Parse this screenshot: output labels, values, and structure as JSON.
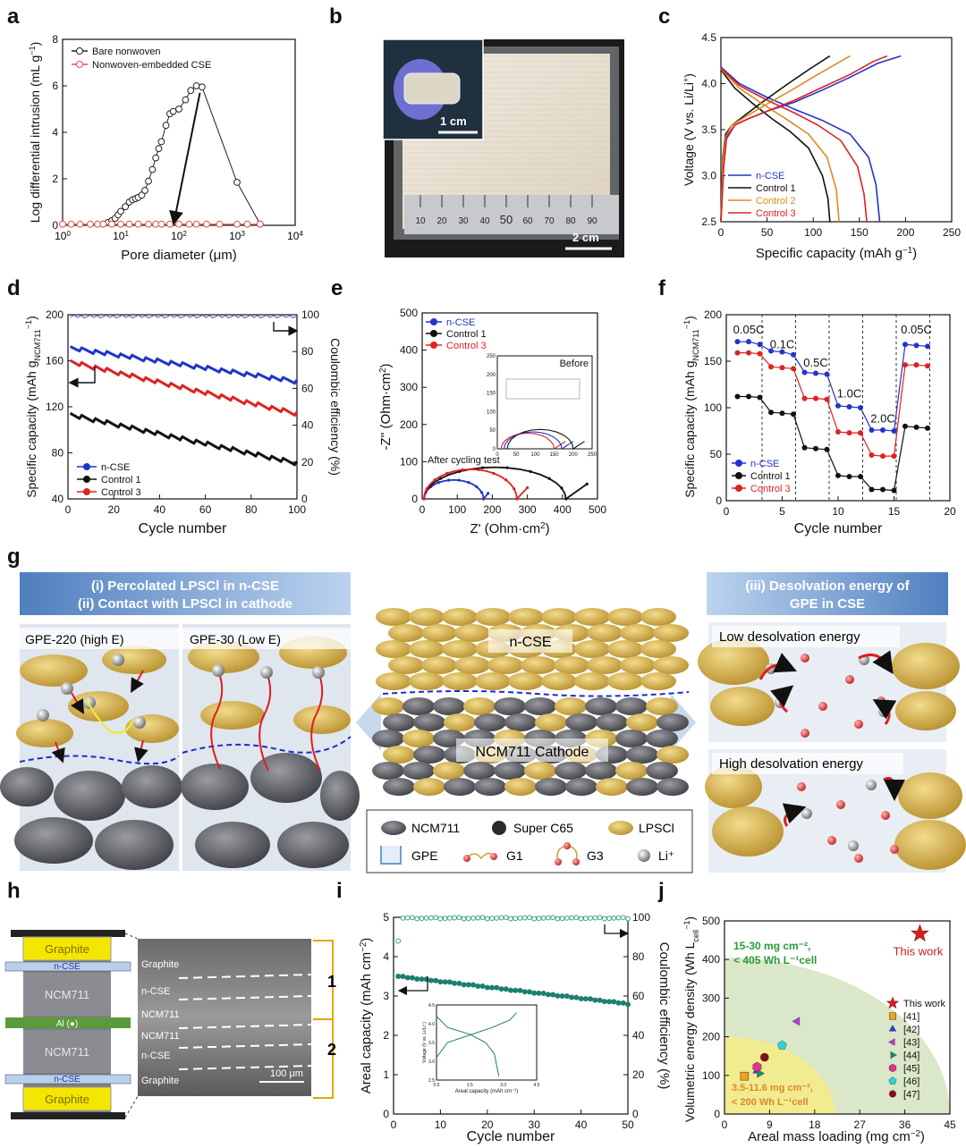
{
  "chart_data": [
    {
      "panel": "a",
      "type": "line",
      "xscale": "log",
      "xlabel": "Pore diameter (μm)",
      "ylabel": "Log differential intrusion (mL g",
      "ylabel_sup": "−1",
      "ylabel_end": ")",
      "xlim": [
        1,
        10000
      ],
      "ylim": [
        0,
        8
      ],
      "xticks": [
        1,
        10,
        100,
        1000,
        10000
      ],
      "xtick_labels": [
        "10",
        "10",
        "10",
        "10",
        "10"
      ],
      "xtick_sups": [
        "0",
        "1",
        "2",
        "3",
        "4"
      ],
      "yticks": [
        0,
        2,
        4,
        6,
        8
      ],
      "series": [
        {
          "name": "Bare nonwoven",
          "color": "#222222",
          "x": [
            5,
            6,
            7,
            8,
            9,
            10,
            12,
            14,
            16,
            18,
            20,
            23,
            26,
            30,
            35,
            40,
            45,
            50,
            60,
            70,
            80,
            100,
            130,
            160,
            200,
            250,
            1000,
            2500
          ],
          "y": [
            0.05,
            0.12,
            0.2,
            0.3,
            0.45,
            0.6,
            0.8,
            1.0,
            1.1,
            1.15,
            1.2,
            1.3,
            1.5,
            1.9,
            2.4,
            2.9,
            3.3,
            3.6,
            4.3,
            4.8,
            4.9,
            5.0,
            5.4,
            5.8,
            6.0,
            5.95,
            1.85,
            0.05
          ]
        },
        {
          "name": "Nonwoven-embedded CSE",
          "color": "#d9534f",
          "x": [
            1,
            1.4,
            2,
            3,
            4,
            5,
            7,
            10,
            14,
            20,
            30,
            40,
            50,
            70,
            100,
            150,
            200,
            300,
            500,
            1000,
            1500,
            2500
          ],
          "y": [
            0.05,
            0.05,
            0.05,
            0.05,
            0.05,
            0.05,
            0.05,
            0.05,
            0.05,
            0.05,
            0.05,
            0.05,
            0.05,
            0.05,
            0.05,
            0.05,
            0.05,
            0.05,
            0.05,
            0.05,
            0.05,
            0.05
          ]
        }
      ]
    },
    {
      "panel": "c",
      "type": "line",
      "xlabel": "Specific capacity (mAh g",
      "xlabel_sup": "−1",
      "xlabel_end": ")",
      "ylabel": "Voltage (V vs. Li/Li",
      "ylabel_sup": "+",
      "ylabel_end": ")",
      "xlim": [
        0,
        250
      ],
      "ylim": [
        2.5,
        4.5
      ],
      "xticks": [
        0,
        50,
        100,
        150,
        200,
        250
      ],
      "yticks": [
        2.5,
        3.0,
        3.5,
        4.0,
        4.5
      ],
      "series": [
        {
          "name": "n-CSE",
          "color": "#2233cc",
          "charge_x": [
            0,
            3,
            6,
            15,
            30,
            50,
            80,
            110,
            140,
            170,
            195
          ],
          "charge_y": [
            2.5,
            3.1,
            3.4,
            3.55,
            3.62,
            3.7,
            3.8,
            3.93,
            4.07,
            4.22,
            4.3
          ],
          "discharge_x": [
            0,
            20,
            50,
            80,
            110,
            140,
            160,
            168,
            172
          ],
          "discharge_y": [
            4.18,
            4.0,
            3.85,
            3.72,
            3.6,
            3.45,
            3.2,
            2.9,
            2.5
          ]
        },
        {
          "name": "Control 1",
          "color": "#111111",
          "charge_x": [
            0,
            2,
            5,
            12,
            25,
            45,
            70,
            95,
            118
          ],
          "charge_y": [
            2.5,
            3.2,
            3.45,
            3.55,
            3.65,
            3.8,
            3.98,
            4.15,
            4.3
          ],
          "discharge_x": [
            0,
            15,
            35,
            55,
            75,
            95,
            110,
            116,
            118
          ],
          "discharge_y": [
            4.15,
            3.95,
            3.78,
            3.62,
            3.48,
            3.3,
            3.0,
            2.75,
            2.5
          ]
        },
        {
          "name": "Control 2",
          "color": "#e08a1e",
          "charge_x": [
            0,
            2,
            5,
            12,
            25,
            45,
            75,
            105,
            140
          ],
          "charge_y": [
            2.5,
            3.15,
            3.42,
            3.55,
            3.63,
            3.75,
            3.92,
            4.1,
            4.3
          ],
          "discharge_x": [
            0,
            20,
            45,
            70,
            95,
            115,
            125,
            128
          ],
          "discharge_y": [
            4.16,
            3.95,
            3.78,
            3.62,
            3.45,
            3.2,
            2.85,
            2.5
          ]
        },
        {
          "name": "Control 3",
          "color": "#dd2222",
          "charge_x": [
            0,
            3,
            6,
            15,
            30,
            50,
            80,
            110,
            140,
            165,
            180
          ],
          "charge_y": [
            2.5,
            3.1,
            3.42,
            3.55,
            3.62,
            3.7,
            3.82,
            3.96,
            4.1,
            4.24,
            4.3
          ],
          "discharge_x": [
            0,
            20,
            50,
            80,
            105,
            130,
            148,
            155,
            158
          ],
          "discharge_y": [
            4.17,
            3.98,
            3.82,
            3.68,
            3.55,
            3.38,
            3.1,
            2.8,
            2.5
          ]
        }
      ]
    },
    {
      "panel": "d",
      "type": "scatter",
      "xlabel": "Cycle number",
      "ylabel": "Specific capacity (mAh g",
      "ylabel_sub": "NCM711",
      "ylabel_sup": "−1",
      "ylabel_end": ")",
      "y2label": "Coulombic efficiency (%)",
      "xlim": [
        0,
        100
      ],
      "ylim": [
        40,
        200
      ],
      "y2lim": [
        0,
        100
      ],
      "xticks": [
        0,
        20,
        40,
        60,
        80,
        100
      ],
      "yticks": [
        40,
        80,
        120,
        160,
        200
      ],
      "y2ticks": [
        0,
        20,
        40,
        60,
        80,
        100
      ],
      "series": [
        {
          "name": "n-CSE",
          "color": "#2233cc",
          "start": 171,
          "end": 142
        },
        {
          "name": "Control 1",
          "color": "#111111",
          "start": 113,
          "end": 71
        },
        {
          "name": "Control 3",
          "color": "#dd2222",
          "start": 159,
          "end": 114
        }
      ],
      "coulombic_efficiency_pct": 99
    },
    {
      "panel": "e",
      "type": "line",
      "xlabel": "Z' (Ohm·cm",
      "xlabel_sup": "2",
      "xlabel_end": ")",
      "ylabel": "-Z'' (Ohm·cm",
      "ylabel_sup": "2",
      "ylabel_end": ")",
      "xlim": [
        0,
        500
      ],
      "ylim": [
        0,
        500
      ],
      "xticks": [
        0,
        100,
        200,
        300,
        400,
        500
      ],
      "yticks": [
        0,
        100,
        200,
        300,
        400,
        500
      ],
      "annotation": "After cycling test",
      "inset_label": "Before",
      "inset_xticks": [
        0,
        50,
        100,
        150,
        200,
        250
      ],
      "inset_yticks": [
        0,
        50,
        100,
        150,
        200,
        250
      ],
      "series": [
        {
          "name": "n-CSE",
          "color": "#2233cc",
          "arc_start": 5,
          "arc_end": 175,
          "tail_x": [
            175,
            188
          ],
          "tail_y": [
            0,
            15
          ]
        },
        {
          "name": "Control 1",
          "color": "#111111",
          "arc_start": 5,
          "arc_end": 410,
          "tail_x": [
            410,
            470
          ],
          "tail_y": [
            0,
            40
          ]
        },
        {
          "name": "Control 3",
          "color": "#dd2222",
          "arc_start": 5,
          "arc_end": 270,
          "tail_x": [
            270,
            300
          ],
          "tail_y": [
            0,
            30
          ]
        }
      ]
    },
    {
      "panel": "f",
      "type": "scatter",
      "xlabel": "Cycle number",
      "ylabel": "Specific capacity (mAh g",
      "ylabel_sub": "NCM711",
      "ylabel_sup": "−1",
      "ylabel_end": ")",
      "xlim": [
        0,
        20
      ],
      "ylim": [
        0,
        200
      ],
      "xticks": [
        0,
        5,
        10,
        15,
        20
      ],
      "yticks": [
        0,
        50,
        100,
        150,
        200
      ],
      "rates": [
        "0.05C",
        "0.1C",
        "0.5C",
        "1.0C",
        "2.0C",
        "0.05C"
      ],
      "rate_boundaries": [
        3,
        6,
        9,
        12,
        15,
        18
      ],
      "series": [
        {
          "name": "n-CSE",
          "color": "#2233cc",
          "values": [
            171,
            171,
            168,
            161,
            160,
            157,
            138,
            137,
            136,
            102,
            101,
            100,
            76,
            76,
            75,
            168,
            167,
            166
          ]
        },
        {
          "name": "Control 1",
          "color": "#111111",
          "values": [
            112,
            112,
            111,
            95,
            94,
            93,
            57,
            56,
            55,
            27,
            26,
            26,
            12,
            12,
            11,
            80,
            79,
            78
          ]
        },
        {
          "name": "Control 3",
          "color": "#dd2222",
          "values": [
            159,
            159,
            158,
            144,
            143,
            142,
            110,
            110,
            109,
            74,
            73,
            73,
            49,
            48,
            48,
            146,
            146,
            145
          ]
        }
      ]
    },
    {
      "panel": "i",
      "type": "scatter",
      "xlabel": "Cycle number",
      "ylabel": "Areal capacity (mAh cm",
      "ylabel_sup": "−2",
      "ylabel_end": ")",
      "y2label": "Coulombic efficiency (%)",
      "xlim": [
        0,
        50
      ],
      "ylim": [
        0,
        5
      ],
      "y2lim": [
        0,
        100
      ],
      "xticks": [
        0,
        10,
        20,
        30,
        40,
        50
      ],
      "yticks": [
        0,
        1,
        2,
        3,
        4,
        5
      ],
      "y2ticks": [
        0,
        20,
        40,
        60,
        80,
        100
      ],
      "capacity_start": 3.5,
      "capacity_end": 2.8,
      "ce_first": 88,
      "ce_steady": 99.6,
      "inset_xlabel": "Areal capacity (mAh cm⁻²)",
      "inset_ylabel": "Voltage (V vs. Li/Li⁺)",
      "inset_xticks": [
        "0.0",
        "1.5",
        "3.0",
        "4.5"
      ],
      "inset_yticks": [
        "2.5",
        "3.0",
        "3.5",
        "4.0",
        "4.5"
      ],
      "inset_xlim": [
        0,
        4.5
      ],
      "inset_ylim": [
        2.5,
        4.5
      ]
    },
    {
      "panel": "j",
      "type": "scatter",
      "xlabel": "Areal mass loading (mg cm",
      "xlabel_sup": "−2",
      "xlabel_end": ")",
      "ylabel": "Volumetric energy density (Wh L",
      "ylabel_sub": "cell",
      "ylabel_sup": "−1",
      "ylabel_end": ")",
      "xlim": [
        0,
        45
      ],
      "ylim": [
        0,
        500
      ],
      "xticks": [
        0,
        9,
        18,
        27,
        36,
        45
      ],
      "yticks": [
        0,
        100,
        200,
        300,
        400,
        500
      ],
      "region_high": "15-30 mg cm⁻², < 405 Wh L⁻¹cell",
      "region_low": "3.5-11.6 mg cm⁻², < 200 Wh L⁻¹cell",
      "points": [
        {
          "label": "This work",
          "x": 39,
          "y": 467,
          "color": "#d42020",
          "marker": "star"
        },
        {
          "label": "[41]",
          "x": 4,
          "y": 98,
          "color": "#f2a21b",
          "marker": "square"
        },
        {
          "label": "[42]",
          "x": 6.5,
          "y": 112,
          "color": "#2244dd",
          "marker": "triangle-up"
        },
        {
          "label": "[43]",
          "x": 14.5,
          "y": 240,
          "color": "#b63bd6",
          "marker": "triangle-left"
        },
        {
          "label": "[44]",
          "x": 7,
          "y": 105,
          "color": "#1a8a7a",
          "marker": "triangle-right"
        },
        {
          "label": "[45]",
          "x": 6.5,
          "y": 122,
          "color": "#e0338a",
          "marker": "hexagon"
        },
        {
          "label": "[46]",
          "x": 11.5,
          "y": 178,
          "color": "#27d6d6",
          "marker": "pentagon"
        },
        {
          "label": "[47]",
          "x": 8,
          "y": 147,
          "color": "#7a1515",
          "marker": "circle"
        }
      ]
    }
  ],
  "panel_letters": {
    "a": "a",
    "b": "b",
    "c": "c",
    "d": "d",
    "e": "e",
    "f": "f",
    "g": "g",
    "h": "h",
    "i": "i",
    "j": "j"
  },
  "photo_b": {
    "scale1": "1 cm",
    "scale2": "2 cm",
    "ruler": [
      "10",
      "20",
      "30",
      "40",
      "50",
      "60",
      "70",
      "80",
      "90"
    ]
  },
  "schematic_g": {
    "left_title_1": "(i) Percolated LPSCl in n-CSE",
    "left_title_2": "(ii) Contact with LPSCl in cathode",
    "left_sub_1": "GPE-220 (high E)",
    "left_sub_2": "GPE-30 (Low E)",
    "center_top": "n-CSE",
    "center_bottom": "NCM711 Cathode",
    "legend": [
      "NCM711",
      "Super C65",
      "LPSCl",
      "GPE",
      "G1",
      "G3",
      "Li⁺"
    ],
    "right_title_1": "(iii) Desolvation energy of",
    "right_title_2": "GPE in CSE",
    "right_low": "Low desolvation energy",
    "right_high": "High desolvation energy",
    "li_label": "Li⁺"
  },
  "schematic_h": {
    "layers": [
      "Graphite",
      "n-CSE",
      "NCM711",
      "Al (●)",
      "NCM711",
      "n-CSE",
      "Graphite"
    ],
    "sem_labels": [
      "Graphite",
      "n-CSE",
      "NCM711",
      "NCM711",
      "n-CSE",
      "Graphite"
    ],
    "brackets": [
      "1",
      "2"
    ],
    "scale": "100 μm"
  },
  "colors": {
    "blue": "#2233cc",
    "black": "#111111",
    "red": "#dd2222",
    "orange": "#e08a1e",
    "gold": "#d9b44a",
    "grey": "#55575c",
    "green": "#1d7f6e"
  }
}
